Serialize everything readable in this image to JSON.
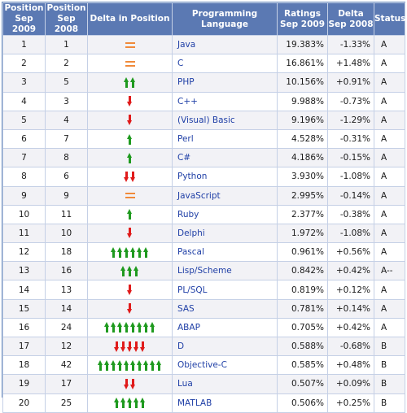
{
  "header": {
    "pos2009": "Position Sep 2009",
    "pos2008": "Position Sep 2008",
    "delta_pos": "Delta in Position",
    "language": "Programming Language",
    "ratings": "Ratings Sep 2009",
    "delta": "Delta Sep 2008",
    "status": "Status"
  },
  "rows": [
    {
      "pos2009": "1",
      "pos2008": "1",
      "delta_icons": {
        "type": "eq",
        "count": 1
      },
      "language": "Java",
      "rating": "19.383%",
      "delta": "-1.33%",
      "status": "A"
    },
    {
      "pos2009": "2",
      "pos2008": "2",
      "delta_icons": {
        "type": "eq",
        "count": 1
      },
      "language": "C",
      "rating": "16.861%",
      "delta": "+1.48%",
      "status": "A"
    },
    {
      "pos2009": "3",
      "pos2008": "5",
      "delta_icons": {
        "type": "up",
        "count": 2
      },
      "language": "PHP",
      "rating": "10.156%",
      "delta": "+0.91%",
      "status": "A"
    },
    {
      "pos2009": "4",
      "pos2008": "3",
      "delta_icons": {
        "type": "down",
        "count": 1
      },
      "language": "C++",
      "rating": "9.988%",
      "delta": "-0.73%",
      "status": "A"
    },
    {
      "pos2009": "5",
      "pos2008": "4",
      "delta_icons": {
        "type": "down",
        "count": 1
      },
      "language": "(Visual) Basic",
      "rating": "9.196%",
      "delta": "-1.29%",
      "status": "A"
    },
    {
      "pos2009": "6",
      "pos2008": "7",
      "delta_icons": {
        "type": "up",
        "count": 1
      },
      "language": "Perl",
      "rating": "4.528%",
      "delta": "-0.31%",
      "status": "A"
    },
    {
      "pos2009": "7",
      "pos2008": "8",
      "delta_icons": {
        "type": "up",
        "count": 1
      },
      "language": "C#",
      "rating": "4.186%",
      "delta": "-0.15%",
      "status": "A"
    },
    {
      "pos2009": "8",
      "pos2008": "6",
      "delta_icons": {
        "type": "down",
        "count": 2
      },
      "language": "Python",
      "rating": "3.930%",
      "delta": "-1.08%",
      "status": "A"
    },
    {
      "pos2009": "9",
      "pos2008": "9",
      "delta_icons": {
        "type": "eq",
        "count": 1
      },
      "language": "JavaScript",
      "rating": "2.995%",
      "delta": "-0.14%",
      "status": "A"
    },
    {
      "pos2009": "10",
      "pos2008": "11",
      "delta_icons": {
        "type": "up",
        "count": 1
      },
      "language": "Ruby",
      "rating": "2.377%",
      "delta": "-0.38%",
      "status": "A"
    },
    {
      "pos2009": "11",
      "pos2008": "10",
      "delta_icons": {
        "type": "down",
        "count": 1
      },
      "language": "Delphi",
      "rating": "1.972%",
      "delta": "-1.08%",
      "status": "A"
    },
    {
      "pos2009": "12",
      "pos2008": "18",
      "delta_icons": {
        "type": "up",
        "count": 6
      },
      "language": "Pascal",
      "rating": "0.961%",
      "delta": "+0.56%",
      "status": "A"
    },
    {
      "pos2009": "13",
      "pos2008": "16",
      "delta_icons": {
        "type": "up",
        "count": 3
      },
      "language": "Lisp/Scheme",
      "rating": "0.842%",
      "delta": "+0.42%",
      "status": "A--"
    },
    {
      "pos2009": "14",
      "pos2008": "13",
      "delta_icons": {
        "type": "down",
        "count": 1
      },
      "language": "PL/SQL",
      "rating": "0.819%",
      "delta": "+0.12%",
      "status": "A"
    },
    {
      "pos2009": "15",
      "pos2008": "14",
      "delta_icons": {
        "type": "down",
        "count": 1
      },
      "language": "SAS",
      "rating": "0.781%",
      "delta": "+0.14%",
      "status": "A"
    },
    {
      "pos2009": "16",
      "pos2008": "24",
      "delta_icons": {
        "type": "up",
        "count": 8
      },
      "language": "ABAP",
      "rating": "0.705%",
      "delta": "+0.42%",
      "status": "A"
    },
    {
      "pos2009": "17",
      "pos2008": "12",
      "delta_icons": {
        "type": "down",
        "count": 5
      },
      "language": "D",
      "rating": "0.588%",
      "delta": "-0.68%",
      "status": "B"
    },
    {
      "pos2009": "18",
      "pos2008": "42",
      "delta_icons": {
        "type": "up",
        "count": 10
      },
      "language": "Objective-C",
      "rating": "0.585%",
      "delta": "+0.48%",
      "status": "B"
    },
    {
      "pos2009": "19",
      "pos2008": "17",
      "delta_icons": {
        "type": "down",
        "count": 2
      },
      "language": "Lua",
      "rating": "0.507%",
      "delta": "+0.09%",
      "status": "B"
    },
    {
      "pos2009": "20",
      "pos2008": "25",
      "delta_icons": {
        "type": "up",
        "count": 5
      },
      "language": "MATLAB",
      "rating": "0.506%",
      "delta": "+0.25%",
      "status": "B"
    }
  ],
  "colors": {
    "header_bg": "#5b79b3",
    "link": "#1f3fa6",
    "arrow_up": "#1f9a1f",
    "arrow_down": "#e01b1b",
    "equal": "#f08a3a"
  }
}
